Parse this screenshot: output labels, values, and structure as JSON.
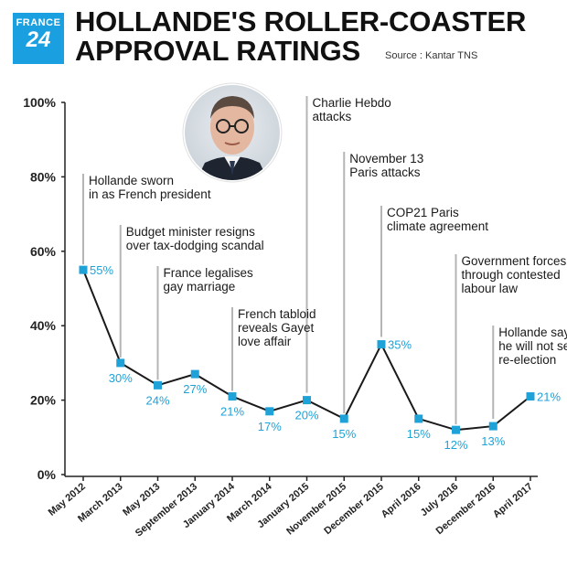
{
  "logo": {
    "line1": "FRANCE",
    "line2": "24"
  },
  "header": {
    "title_line1": "HOLLANDE'S ROLLER-COASTER",
    "title_line2": "APPROVAL RATINGS",
    "source": "Source : Kantar TNS"
  },
  "colors": {
    "line": "#1a1a1a",
    "marker": "#1fa2d8",
    "label": "#1fa2d8",
    "logo_bg": "#1aa0e0",
    "stem": "#b5b5b5"
  },
  "photo": {
    "icon": "portrait-photo-icon"
  },
  "chart_data": {
    "type": "line",
    "title": "HOLLANDE'S ROLLER-COASTER APPROVAL RATINGS",
    "xlabel": "",
    "ylabel": "",
    "ylim": [
      0,
      100
    ],
    "yticks": [
      "0%",
      "20%",
      "40%",
      "60%",
      "80%",
      "100%"
    ],
    "grid": false,
    "categories": [
      "May 2012",
      "March 2013",
      "May 2013",
      "September 2013",
      "January 2014",
      "March 2014",
      "January 2015",
      "November 2015",
      "December 2015",
      "April 2016",
      "July 2016",
      "December 2016",
      "April 2017"
    ],
    "values": [
      55,
      30,
      24,
      27,
      21,
      17,
      20,
      15,
      35,
      15,
      12,
      13,
      21
    ],
    "value_labels": [
      "55%",
      "30%",
      "24%",
      "27%",
      "21%",
      "17%",
      "20%",
      "15%",
      "35%",
      "15%",
      "12%",
      "13%",
      "21%"
    ],
    "annotations": [
      {
        "index": 0,
        "lines": [
          "Hollande sworn",
          "in as French president"
        ]
      },
      {
        "index": 1,
        "lines": [
          "Budget minister resigns",
          "over tax-dodging scandal"
        ]
      },
      {
        "index": 2,
        "lines": [
          "France legalises",
          "gay marriage"
        ]
      },
      {
        "index": 4,
        "lines": [
          "French tabloid",
          "reveals Gayet",
          "love affair"
        ]
      },
      {
        "index": 6,
        "lines": [
          "Charlie Hebdo",
          "attacks"
        ]
      },
      {
        "index": 7,
        "lines": [
          "November 13",
          "Paris attacks"
        ]
      },
      {
        "index": 8,
        "lines": [
          "COP21 Paris",
          "climate agreement"
        ]
      },
      {
        "index": 10,
        "lines": [
          "Government forces",
          "through contested",
          "labour law"
        ]
      },
      {
        "index": 11,
        "lines": [
          "Hollande says",
          "he will not seek",
          "re-election"
        ]
      }
    ]
  }
}
